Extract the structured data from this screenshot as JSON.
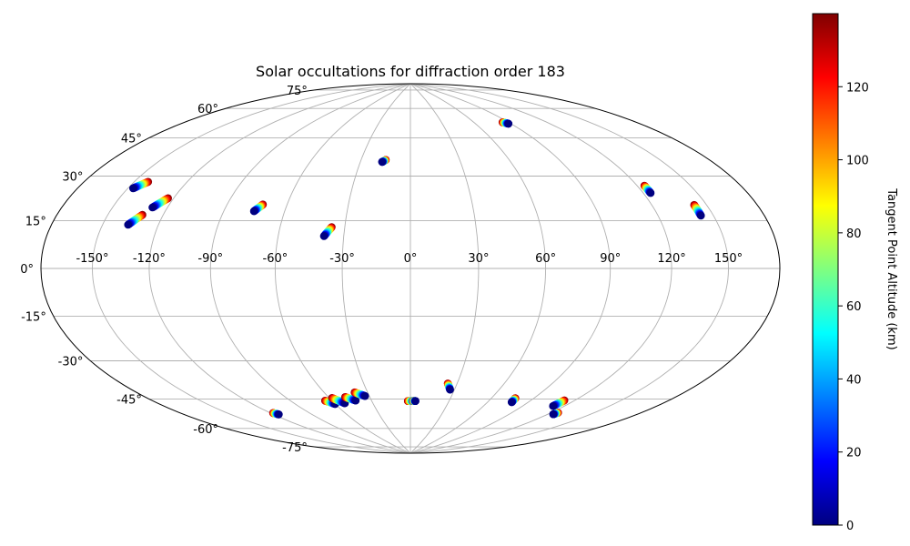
{
  "chart_data": {
    "type": "scatter",
    "projection": "aitoff-hammer (all-sky)",
    "title": "Solar occultations for diffraction order 183",
    "x_ticks": [
      "-150°",
      "-120°",
      "-90°",
      "-60°",
      "-30°",
      "0°",
      "30°",
      "60°",
      "90°",
      "120°",
      "150°"
    ],
    "x_tick_values": [
      -150,
      -120,
      -90,
      -60,
      -30,
      0,
      30,
      60,
      90,
      120,
      150
    ],
    "y_ticks": [
      "-75°",
      "-60°",
      "-45°",
      "-30°",
      "-15°",
      "0°",
      "15°",
      "30°",
      "45°",
      "60°",
      "75°"
    ],
    "y_tick_values": [
      -75,
      -60,
      -45,
      -30,
      -15,
      0,
      15,
      30,
      45,
      60,
      75
    ],
    "grid": true,
    "colorbar": {
      "label": "Tangent Point Altitude (km)",
      "min": 0,
      "max": 140,
      "ticks": [
        "0",
        "20",
        "40",
        "60",
        "80",
        "100",
        "120"
      ],
      "tick_values": [
        0,
        20,
        40,
        60,
        80,
        100,
        120
      ],
      "colormap": "jet"
    },
    "occultations": [
      {
        "lon_start": -147,
        "lat_start": 29,
        "lon_end": -142,
        "lat_end": 32
      },
      {
        "lon_start": -128,
        "lat_start": 23,
        "lon_end": -123,
        "lat_end": 27
      },
      {
        "lon_start": -136,
        "lat_start": 16,
        "lon_end": -131,
        "lat_end": 20
      },
      {
        "lon_start": -75,
        "lat_start": 24,
        "lon_end": -72,
        "lat_end": 27
      },
      {
        "lon_start": -39,
        "lat_start": 14,
        "lon_end": -36,
        "lat_end": 18
      },
      {
        "lon_start": -17,
        "lat_start": 48,
        "lon_end": -15,
        "lat_end": 49
      },
      {
        "lon_start": 88,
        "lat_start": 64,
        "lon_end": 85,
        "lat_end": 65
      },
      {
        "lon_start": 124,
        "lat_start": 29,
        "lon_end": 124,
        "lat_end": 32
      },
      {
        "lon_start": 143,
        "lat_start": 19,
        "lon_end": 143,
        "lat_end": 23
      },
      {
        "lon_start": -116,
        "lat_start": -62,
        "lon_end": -118,
        "lat_end": -61
      },
      {
        "lon_start": -60,
        "lat_start": -61,
        "lon_end": -65,
        "lat_end": -59
      },
      {
        "lon_start": -52,
        "lat_start": -61,
        "lon_end": -58,
        "lat_end": -58
      },
      {
        "lon_start": -42,
        "lat_start": -60,
        "lon_end": -48,
        "lat_end": -58
      },
      {
        "lon_start": -33,
        "lat_start": -58,
        "lon_end": -39,
        "lat_end": -56
      },
      {
        "lon_start": 3,
        "lat_start": -61,
        "lon_end": -2,
        "lat_end": -61
      },
      {
        "lon_start": 4,
        "lat_start": -61,
        "lon_end": 2,
        "lat_end": -61
      },
      {
        "lon_start": 27,
        "lat_start": -55,
        "lon_end": 24,
        "lat_end": -52
      },
      {
        "lon_start": 78,
        "lat_start": -59,
        "lon_end": 77,
        "lat_end": -57
      },
      {
        "lon_start": 112,
        "lat_start": -58,
        "lon_end": 113,
        "lat_end": -55
      },
      {
        "lon_start": 124,
        "lat_start": -61,
        "lon_end": 125,
        "lat_end": -60
      }
    ]
  }
}
